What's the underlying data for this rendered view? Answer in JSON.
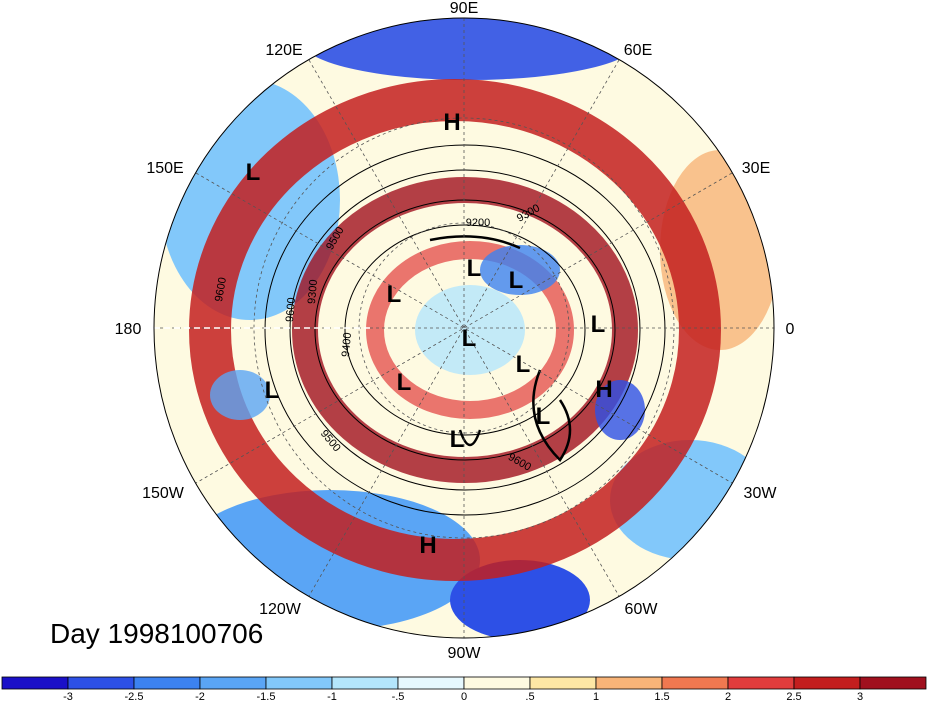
{
  "title": "Day 1998100706",
  "longitude_labels": [
    "90E",
    "60E",
    "30E",
    "0",
    "30W",
    "60W",
    "90W",
    "120W",
    "150W",
    "180",
    "150E",
    "120E"
  ],
  "pressure_systems": [
    "H",
    "L",
    "L",
    "L",
    "L",
    "L",
    "L",
    "L",
    "L",
    "L",
    "H",
    "L",
    "H",
    "L"
  ],
  "contour_labels": [
    "9200",
    "9300",
    "9500",
    "9400",
    "9300",
    "9600",
    "9500",
    "9600",
    "9600"
  ],
  "colorbar": {
    "tick_labels": [
      "-3",
      "-2.5",
      "-2",
      "-1.5",
      "-1",
      "-.5",
      "0",
      ".5",
      "1",
      "1.5",
      "2",
      "2.5",
      "3"
    ],
    "colors": [
      "#1a10c8",
      "#2d50e6",
      "#3c82f0",
      "#5aa5f5",
      "#82c8fa",
      "#b4e6fc",
      "#e6f8fe",
      "#fefae1",
      "#fde7a5",
      "#f8b478",
      "#f07850",
      "#e13c3c",
      "#c31e1e",
      "#a0101e"
    ]
  }
}
